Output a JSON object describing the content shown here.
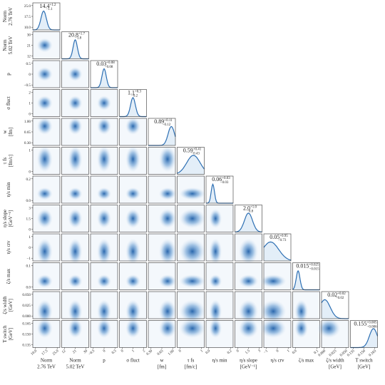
{
  "parameters": [
    {
      "label": "Norm",
      "unit": "2.76 TeV",
      "estimate": "14.4",
      "upper": "+1.2",
      "lower": "−1.1",
      "ticks": [
        "10.0",
        "17.5",
        "25.0"
      ]
    },
    {
      "label": "Norm",
      "unit": "5.02 TeV",
      "estimate": "20.8",
      "upper": "+1.7",
      "lower": "−1.8",
      "ticks": [
        "12",
        "21",
        "30"
      ]
    },
    {
      "label": "p",
      "estimate": "0.03",
      "upper": "+0.08",
      "lower": "−0.08",
      "ticks": [
        "−0.5",
        "0",
        "0.5"
      ]
    },
    {
      "label": "σ fluct",
      "estimate": "1.1",
      "upper": "+0.3",
      "lower": "−0.2",
      "ticks": [
        "0",
        "1",
        "2"
      ]
    },
    {
      "label": "w",
      "unit": "[fm]",
      "estimate": "0.89",
      "upper": "+0.11",
      "lower": "−0.12",
      "ticks": [
        "0.30",
        "0.65",
        "1.00"
      ]
    },
    {
      "label": "τ fs",
      "unit": "[fm/c]",
      "estimate": "0.59",
      "upper": "+0.41",
      "lower": "−0.43",
      "ticks": [
        "0",
        "1"
      ]
    },
    {
      "label": "η/s min",
      "estimate": "0.06",
      "upper": "+0.03",
      "lower": "−0.03",
      "ticks": [
        "0.0",
        "0.2"
      ]
    },
    {
      "label": "η/s slope",
      "unit": "[GeV⁻¹]",
      "estimate": "2.0",
      "upper": "+1.0",
      "lower": "−0.8",
      "ticks": [
        "0",
        "1.5",
        "3"
      ]
    },
    {
      "label": "η/s crv",
      "estimate": "0.05",
      "upper": "+0.95",
      "lower": "−0.73",
      "ticks": [
        "−1",
        "0",
        "1"
      ]
    },
    {
      "label": "ζ/s max",
      "estimate": "0.015",
      "upper": "+0.025",
      "lower": "−0.015",
      "ticks": [
        "0.0",
        "0.1"
      ]
    },
    {
      "label": "ζ/s width",
      "unit": "[GeV]",
      "estimate": "0.02",
      "upper": "+0.02",
      "lower": "−0.02",
      "ticks": [
        "0.000",
        "0.025",
        "0.050"
      ]
    },
    {
      "label": "T switch",
      "unit": "[GeV]",
      "estimate": "0.155",
      "upper": "+0.005",
      "lower": "−0.006",
      "ticks": [
        "0.135",
        "0.150",
        "0.165"
      ]
    }
  ]
}
